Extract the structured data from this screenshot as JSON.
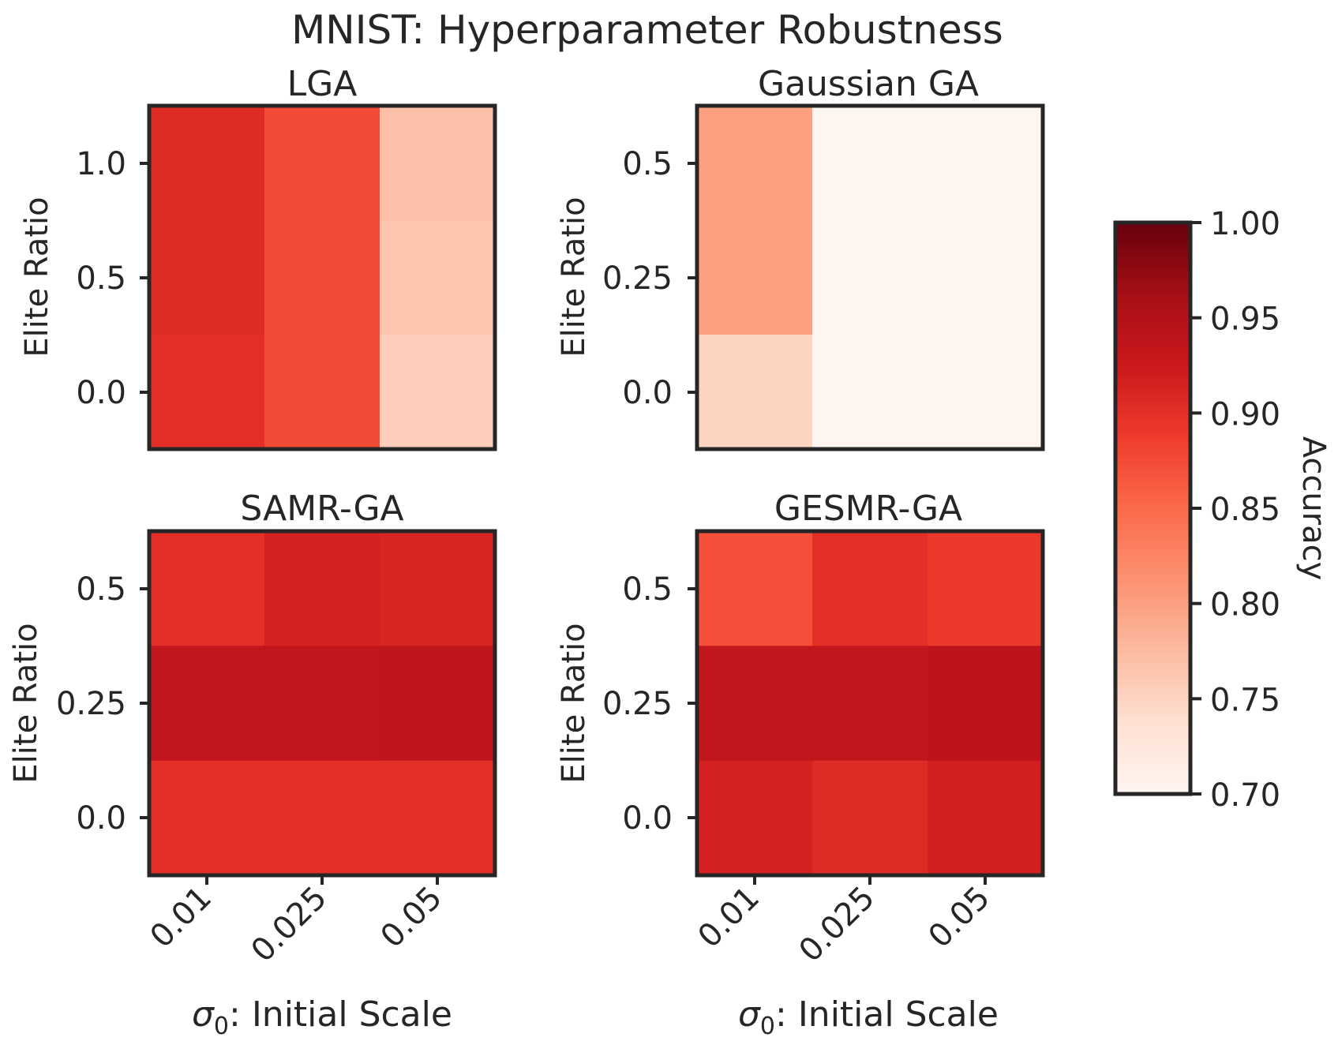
{
  "chart_data": {
    "type": "heatmap",
    "title": "MNIST: Hyperparameter Robustness",
    "xlabel_prefix": "σ",
    "xlabel_sub": "0",
    "xlabel_rest": ": Initial Scale",
    "ylabel": "Elite Ratio",
    "x_tick_labels": [
      "0.01",
      "0.025",
      "0.05"
    ],
    "colorbar": {
      "label": "Accuracy",
      "range": [
        0.7,
        1.0
      ],
      "tick_labels": [
        "1.00",
        "0.95",
        "0.90",
        "0.85",
        "0.80",
        "0.75",
        "0.70"
      ],
      "tick_values": [
        1.0,
        0.95,
        0.9,
        0.85,
        0.8,
        0.75,
        0.7
      ],
      "colormap": "Reds",
      "stops": [
        "#fff5f0",
        "#fee0d2",
        "#fcbba1",
        "#fc9272",
        "#fb6a4a",
        "#ef3b2c",
        "#cb181d",
        "#a50f15",
        "#67000d"
      ]
    },
    "panels": [
      {
        "title": "LGA",
        "y_tick_labels": [
          "1.0",
          "0.5",
          "0.0"
        ],
        "values": [
          [
            0.905,
            0.875,
            0.77
          ],
          [
            0.905,
            0.875,
            0.765
          ],
          [
            0.9,
            0.875,
            0.755
          ]
        ]
      },
      {
        "title": "Gaussian GA",
        "y_tick_labels": [
          "0.5",
          "0.25",
          "0.0"
        ],
        "values": [
          [
            0.8,
            0.7,
            0.7
          ],
          [
            0.8,
            0.7,
            0.7
          ],
          [
            0.75,
            0.7,
            0.7
          ]
        ]
      },
      {
        "title": "SAMR-GA",
        "y_tick_labels": [
          "0.5",
          "0.25",
          "0.0"
        ],
        "values": [
          [
            0.9,
            0.915,
            0.91
          ],
          [
            0.935,
            0.935,
            0.938
          ],
          [
            0.9,
            0.9,
            0.9
          ]
        ]
      },
      {
        "title": "GESMR-GA",
        "y_tick_labels": [
          "0.5",
          "0.25",
          "0.0"
        ],
        "values": [
          [
            0.87,
            0.9,
            0.89
          ],
          [
            0.935,
            0.935,
            0.94
          ],
          [
            0.915,
            0.905,
            0.918
          ]
        ]
      }
    ]
  }
}
